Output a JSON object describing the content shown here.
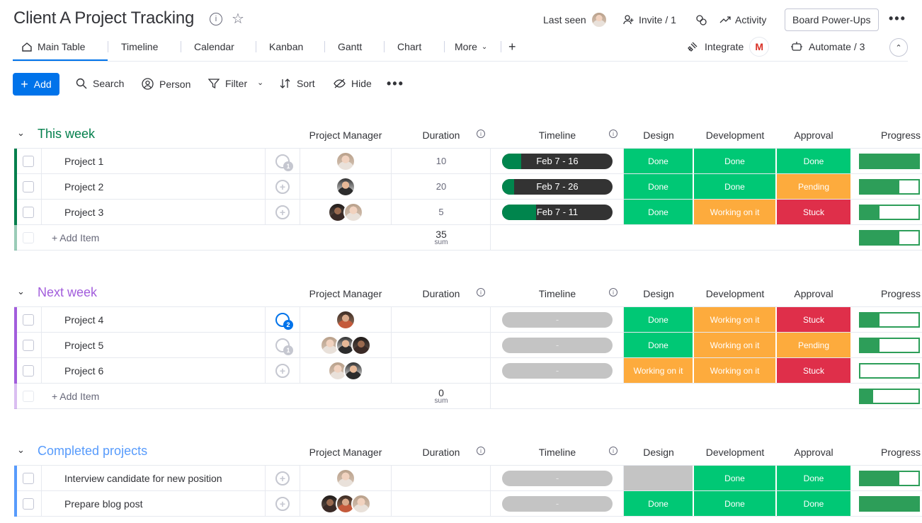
{
  "header": {
    "title": "Client A Project Tracking",
    "last_seen_label": "Last seen",
    "invite_label": "Invite / 1",
    "activity_label": "Activity",
    "powerups_label": "Board Power-Ups"
  },
  "tabs": [
    {
      "label": "Main Table"
    },
    {
      "label": "Timeline"
    },
    {
      "label": "Calendar"
    },
    {
      "label": "Kanban"
    },
    {
      "label": "Gantt"
    },
    {
      "label": "Chart"
    },
    {
      "label": "More"
    }
  ],
  "tabs_right": {
    "integrate_label": "Integrate",
    "automate_label": "Automate / 3"
  },
  "toolbar": {
    "add_label": "Add",
    "search_label": "Search",
    "person_label": "Person",
    "filter_label": "Filter",
    "sort_label": "Sort",
    "hide_label": "Hide"
  },
  "columns": {
    "manager": "Project Manager",
    "duration": "Duration",
    "timeline": "Timeline",
    "design": "Design",
    "development": "Development",
    "approval": "Approval",
    "progress": "Progress"
  },
  "groups": [
    {
      "title": "This week",
      "color": "#037f4c",
      "add_item_label": "+ Add Item",
      "sum_value": "35",
      "sum_label": "sum",
      "summary_progress": 0.67,
      "rows": [
        {
          "name": "Project 1",
          "updates": "1",
          "duration": "10",
          "timeline": "Feb 7 - 16",
          "timeline_fill": 0.11,
          "design": "Done",
          "development": "Done",
          "approval": "Done",
          "progress": 1.0
        },
        {
          "name": "Project 2",
          "updates": "",
          "duration": "20",
          "timeline": "Feb 7 - 26",
          "timeline_fill": 0.05,
          "design": "Done",
          "development": "Done",
          "approval": "Pending",
          "progress": 0.67
        },
        {
          "name": "Project 3",
          "updates": "",
          "duration": "5",
          "timeline": "Feb 7 - 11",
          "timeline_fill": 0.25,
          "design": "Done",
          "development": "Working on it",
          "approval": "Stuck",
          "progress": 0.33
        }
      ]
    },
    {
      "title": "Next week",
      "color": "#a25ddc",
      "add_item_label": "+ Add Item",
      "sum_value": "0",
      "sum_label": "sum",
      "summary_progress": 0.22,
      "rows": [
        {
          "name": "Project 4",
          "updates": "2",
          "duration": "",
          "timeline": "-",
          "timeline_fill": 0,
          "design": "Done",
          "development": "Working on it",
          "approval": "Stuck",
          "progress": 0.33
        },
        {
          "name": "Project 5",
          "updates": "1",
          "duration": "",
          "timeline": "-",
          "timeline_fill": 0,
          "design": "Done",
          "development": "Working on it",
          "approval": "Pending",
          "progress": 0.33
        },
        {
          "name": "Project 6",
          "updates": "",
          "duration": "",
          "timeline": "-",
          "timeline_fill": 0,
          "design": "Working on it",
          "development": "Working on it",
          "approval": "Stuck",
          "progress": 0.0
        }
      ]
    },
    {
      "title": "Completed projects",
      "color": "#579bfc",
      "rows": [
        {
          "name": "Interview candidate for new position",
          "updates": "",
          "duration": "",
          "timeline": "-",
          "timeline_fill": 0,
          "design": "",
          "development": "Done",
          "approval": "Done",
          "progress": 0.67
        },
        {
          "name": "Prepare blog post",
          "updates": "",
          "duration": "",
          "timeline": "-",
          "timeline_fill": 0,
          "design": "Done",
          "development": "Done",
          "approval": "Done",
          "progress": 1.0
        }
      ]
    }
  ],
  "status_colors": {
    "Done": "#00c875",
    "Working on it": "#fdab3d",
    "Stuck": "#df2f4a",
    "Pending": "#fdab3d"
  }
}
